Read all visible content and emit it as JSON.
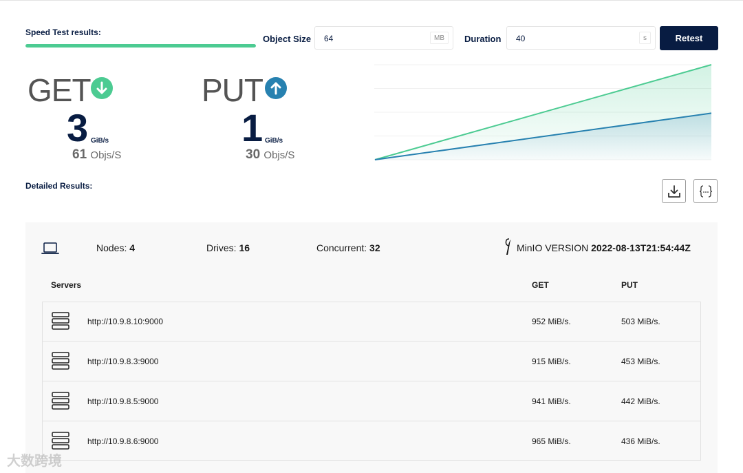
{
  "header": {
    "speed_test_label": "Speed Test results:",
    "progress": 1.0,
    "object_size_label": "Object Size",
    "object_size_value": "64",
    "object_size_unit": "MB",
    "duration_label": "Duration",
    "duration_value": "40",
    "duration_unit": "s",
    "retest_label": "Retest"
  },
  "stats": {
    "get": {
      "title": "GET",
      "value": "3",
      "unit": "GiB/s",
      "objs_value": "61",
      "objs_suffix": "Objs/S",
      "icon": "arrow-down-icon",
      "color": "#4ccb92"
    },
    "put": {
      "title": "PUT",
      "value": "1",
      "unit": "GiB/s",
      "objs_value": "30",
      "objs_suffix": "Objs/S",
      "icon": "arrow-up-icon",
      "color": "#2781b0"
    }
  },
  "chart_data": {
    "type": "area",
    "x": [
      0,
      1
    ],
    "series": [
      {
        "values": [
          0,
          100
        ],
        "color": "#4ccb92"
      },
      {
        "values": [
          0,
          49
        ],
        "color": "#2781b0"
      }
    ],
    "ylim": [
      0,
      100
    ]
  },
  "detailed": {
    "label": "Detailed Results:",
    "download_icon": "download-icon",
    "json_icon": "json-icon"
  },
  "summary": {
    "nodes_label": "Nodes:",
    "nodes_value": "4",
    "drives_label": "Drives:",
    "drives_value": "16",
    "concurrent_label": "Concurrent:",
    "concurrent_value": "32",
    "version_label": "MinIO VERSION",
    "version_value": "2022-08-13T21:54:44Z"
  },
  "table": {
    "headers": {
      "servers": "Servers",
      "get": "GET",
      "put": "PUT"
    },
    "rows": [
      {
        "url": "http://10.9.8.10:9000",
        "get": "952 MiB/s.",
        "put": "503 MiB/s."
      },
      {
        "url": "http://10.9.8.3:9000",
        "get": "915 MiB/s.",
        "put": "453 MiB/s."
      },
      {
        "url": "http://10.9.8.5:9000",
        "get": "941 MiB/s.",
        "put": "442 MiB/s."
      },
      {
        "url": "http://10.9.8.6:9000",
        "get": "965 MiB/s.",
        "put": "436 MiB/s."
      }
    ]
  },
  "watermark": "大数跨境"
}
